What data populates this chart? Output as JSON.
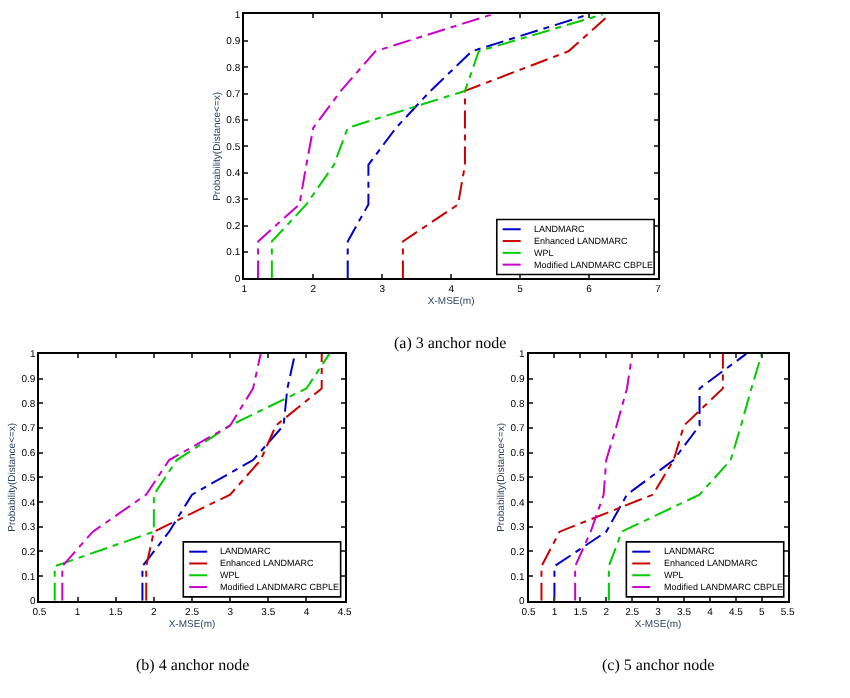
{
  "chart_data": [
    {
      "type": "line",
      "title": "(a) 3 anchor node",
      "xlabel": "X-MSE(m)",
      "ylabel": "Probability(Distance<=x)",
      "xlim": [
        1,
        7
      ],
      "xticks": [
        1,
        2,
        3,
        4,
        5,
        6,
        7
      ],
      "ylim": [
        0,
        1
      ],
      "yticks": [
        0,
        0.1,
        0.2,
        0.3,
        0.4,
        0.5,
        0.6,
        0.7,
        0.8,
        0.9,
        1
      ],
      "grid": false,
      "legend": "bottom right",
      "line_style": "dashed",
      "marker": "none",
      "series": [
        {
          "name": "LANDMARC",
          "color": "#0000cc",
          "x": [
            2.5,
            2.5,
            2.8,
            2.8,
            3.2,
            3.7,
            4.3,
            6.0
          ],
          "values": [
            0,
            0.14,
            0.28,
            0.43,
            0.57,
            0.71,
            0.86,
            1
          ]
        },
        {
          "name": "Enhanced LANDMARC",
          "color": "#cc0000",
          "x": [
            3.3,
            3.3,
            4.1,
            4.2,
            4.2,
            4.2,
            5.7,
            6.3
          ],
          "values": [
            0,
            0.14,
            0.28,
            0.43,
            0.57,
            0.71,
            0.86,
            1
          ]
        },
        {
          "name": "WPL",
          "color": "#00cc00",
          "x": [
            1.4,
            1.4,
            1.9,
            2.3,
            2.5,
            4.2,
            4.4,
            6.2
          ],
          "values": [
            0,
            0.14,
            0.28,
            0.43,
            0.57,
            0.71,
            0.86,
            1
          ]
        },
        {
          "name": "Modified LANDMARC CBPLE",
          "color": "#cc00cc",
          "x": [
            1.2,
            1.2,
            1.8,
            1.9,
            2.0,
            2.4,
            2.9,
            4.6
          ],
          "values": [
            0,
            0.14,
            0.28,
            0.43,
            0.57,
            0.71,
            0.86,
            1
          ]
        }
      ]
    },
    {
      "type": "line",
      "title": "(b) 4 anchor node",
      "xlabel": "X-MSE(m)",
      "ylabel": "Probability(Distance<=x)",
      "xlim": [
        0.5,
        4.5
      ],
      "xticks": [
        0.5,
        1,
        1.5,
        2,
        2.5,
        3,
        3.5,
        4,
        4.5
      ],
      "ylim": [
        0,
        1
      ],
      "yticks": [
        0,
        0.1,
        0.2,
        0.3,
        0.4,
        0.5,
        0.6,
        0.7,
        0.8,
        0.9,
        1
      ],
      "grid": false,
      "legend": "bottom right",
      "line_style": "dashed",
      "marker": "none",
      "series": [
        {
          "name": "LANDMARC",
          "color": "#0000cc",
          "x": [
            1.85,
            1.85,
            2.2,
            2.5,
            3.3,
            3.7,
            3.75,
            3.85
          ],
          "values": [
            0,
            0.14,
            0.28,
            0.43,
            0.57,
            0.71,
            0.86,
            1
          ]
        },
        {
          "name": "Enhanced LANDMARC",
          "color": "#cc0000",
          "x": [
            1.9,
            1.9,
            2.0,
            3.0,
            3.4,
            3.6,
            4.2,
            4.2
          ],
          "values": [
            0,
            0.14,
            0.28,
            0.43,
            0.57,
            0.71,
            0.86,
            1
          ]
        },
        {
          "name": "WPL",
          "color": "#00cc00",
          "x": [
            0.7,
            0.7,
            2.0,
            2.0,
            2.3,
            3.0,
            4.0,
            4.3
          ],
          "values": [
            0,
            0.14,
            0.28,
            0.43,
            0.57,
            0.71,
            0.86,
            1
          ]
        },
        {
          "name": "Modified LANDMARC CBPLE",
          "color": "#cc00cc",
          "x": [
            0.8,
            0.8,
            1.2,
            1.9,
            2.2,
            3.0,
            3.3,
            3.4
          ],
          "values": [
            0,
            0.14,
            0.28,
            0.43,
            0.57,
            0.71,
            0.86,
            1
          ]
        }
      ]
    },
    {
      "type": "line",
      "title": "(c) 5 anchor node",
      "xlabel": "X-MSE(m)",
      "ylabel": "Probability(Distance<=x)",
      "xlim": [
        0.5,
        5.5
      ],
      "xticks": [
        0.5,
        1,
        1.5,
        2,
        2.5,
        3,
        3.5,
        4,
        4.5,
        5,
        5.5
      ],
      "ylim": [
        0,
        1
      ],
      "yticks": [
        0,
        0.1,
        0.2,
        0.3,
        0.4,
        0.5,
        0.6,
        0.7,
        0.8,
        0.9,
        1
      ],
      "grid": false,
      "legend": "bottom right",
      "line_style": "dashed",
      "marker": "none",
      "series": [
        {
          "name": "LANDMARC",
          "color": "#0000cc",
          "x": [
            1.0,
            1.0,
            2.0,
            2.4,
            3.3,
            3.8,
            3.8,
            4.7
          ],
          "values": [
            0,
            0.14,
            0.28,
            0.43,
            0.57,
            0.71,
            0.86,
            1
          ]
        },
        {
          "name": "Enhanced LANDMARC",
          "color": "#cc0000",
          "x": [
            0.75,
            0.75,
            1.1,
            2.9,
            3.3,
            3.5,
            4.25,
            4.25
          ],
          "values": [
            0,
            0.14,
            0.28,
            0.43,
            0.57,
            0.71,
            0.86,
            1
          ]
        },
        {
          "name": "WPL",
          "color": "#00cc00",
          "x": [
            2.05,
            2.05,
            2.3,
            3.8,
            4.4,
            4.6,
            4.8,
            5.0
          ],
          "values": [
            0,
            0.14,
            0.28,
            0.43,
            0.57,
            0.71,
            0.86,
            1
          ]
        },
        {
          "name": "Modified LANDMARC CBPLE",
          "color": "#cc00cc",
          "x": [
            1.4,
            1.4,
            1.7,
            1.95,
            2.0,
            2.2,
            2.4,
            2.5
          ],
          "values": [
            0,
            0.14,
            0.28,
            0.43,
            0.57,
            0.71,
            0.86,
            1
          ]
        }
      ]
    }
  ]
}
